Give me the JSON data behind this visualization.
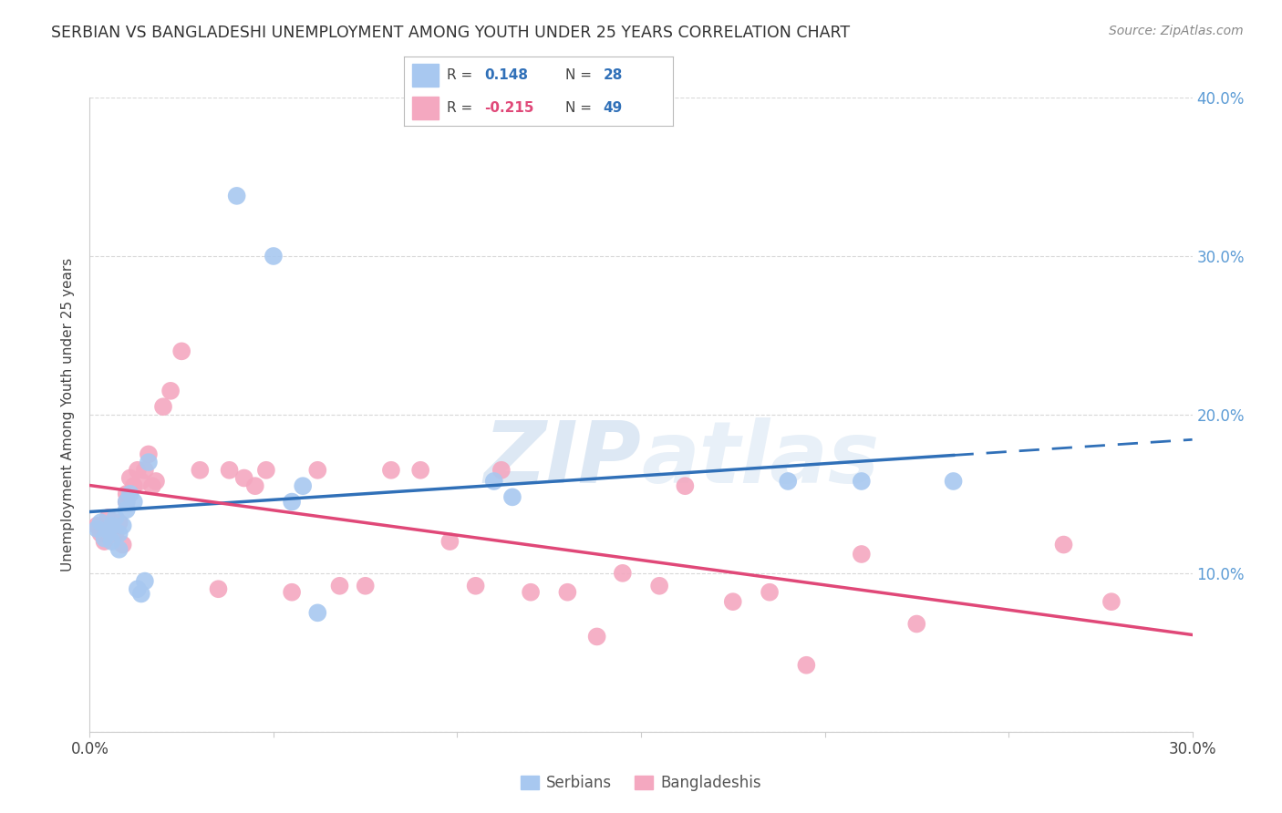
{
  "title": "SERBIAN VS BANGLADESHI UNEMPLOYMENT AMONG YOUTH UNDER 25 YEARS CORRELATION CHART",
  "source": "Source: ZipAtlas.com",
  "ylabel": "Unemployment Among Youth under 25 years",
  "xlim": [
    0.0,
    0.3
  ],
  "ylim": [
    0.0,
    0.4
  ],
  "serbian_R": 0.148,
  "serbian_N": 28,
  "bangladeshi_R": -0.215,
  "bangladeshi_N": 49,
  "serbian_color": "#a8c8f0",
  "bangladeshi_color": "#f4a8c0",
  "trend_serbian_color": "#3070b8",
  "trend_bangladeshi_color": "#e04878",
  "background_color": "#ffffff",
  "watermark_color": "#dde8f4",
  "serbian_x": [
    0.002,
    0.003,
    0.004,
    0.005,
    0.006,
    0.006,
    0.007,
    0.008,
    0.008,
    0.009,
    0.01,
    0.01,
    0.011,
    0.012,
    0.013,
    0.014,
    0.015,
    0.016,
    0.04,
    0.05,
    0.055,
    0.058,
    0.062,
    0.11,
    0.115,
    0.19,
    0.21,
    0.235
  ],
  "serbian_y": [
    0.128,
    0.132,
    0.122,
    0.127,
    0.13,
    0.12,
    0.135,
    0.125,
    0.115,
    0.13,
    0.145,
    0.14,
    0.15,
    0.145,
    0.09,
    0.087,
    0.095,
    0.17,
    0.338,
    0.3,
    0.145,
    0.155,
    0.075,
    0.158,
    0.148,
    0.158,
    0.158,
    0.158
  ],
  "bangladeshi_x": [
    0.002,
    0.003,
    0.004,
    0.005,
    0.006,
    0.007,
    0.008,
    0.009,
    0.01,
    0.01,
    0.011,
    0.012,
    0.013,
    0.014,
    0.015,
    0.016,
    0.017,
    0.018,
    0.02,
    0.022,
    0.025,
    0.03,
    0.035,
    0.038,
    0.042,
    0.045,
    0.048,
    0.055,
    0.062,
    0.068,
    0.075,
    0.082,
    0.09,
    0.098,
    0.105,
    0.112,
    0.12,
    0.13,
    0.138,
    0.145,
    0.155,
    0.162,
    0.175,
    0.185,
    0.195,
    0.21,
    0.225,
    0.265,
    0.278
  ],
  "bangladeshi_y": [
    0.13,
    0.125,
    0.12,
    0.135,
    0.128,
    0.125,
    0.132,
    0.118,
    0.145,
    0.15,
    0.16,
    0.155,
    0.165,
    0.158,
    0.165,
    0.175,
    0.155,
    0.158,
    0.205,
    0.215,
    0.24,
    0.165,
    0.09,
    0.165,
    0.16,
    0.155,
    0.165,
    0.088,
    0.165,
    0.092,
    0.092,
    0.165,
    0.165,
    0.12,
    0.092,
    0.165,
    0.088,
    0.088,
    0.06,
    0.1,
    0.092,
    0.155,
    0.082,
    0.088,
    0.042,
    0.112,
    0.068,
    0.118,
    0.082
  ]
}
